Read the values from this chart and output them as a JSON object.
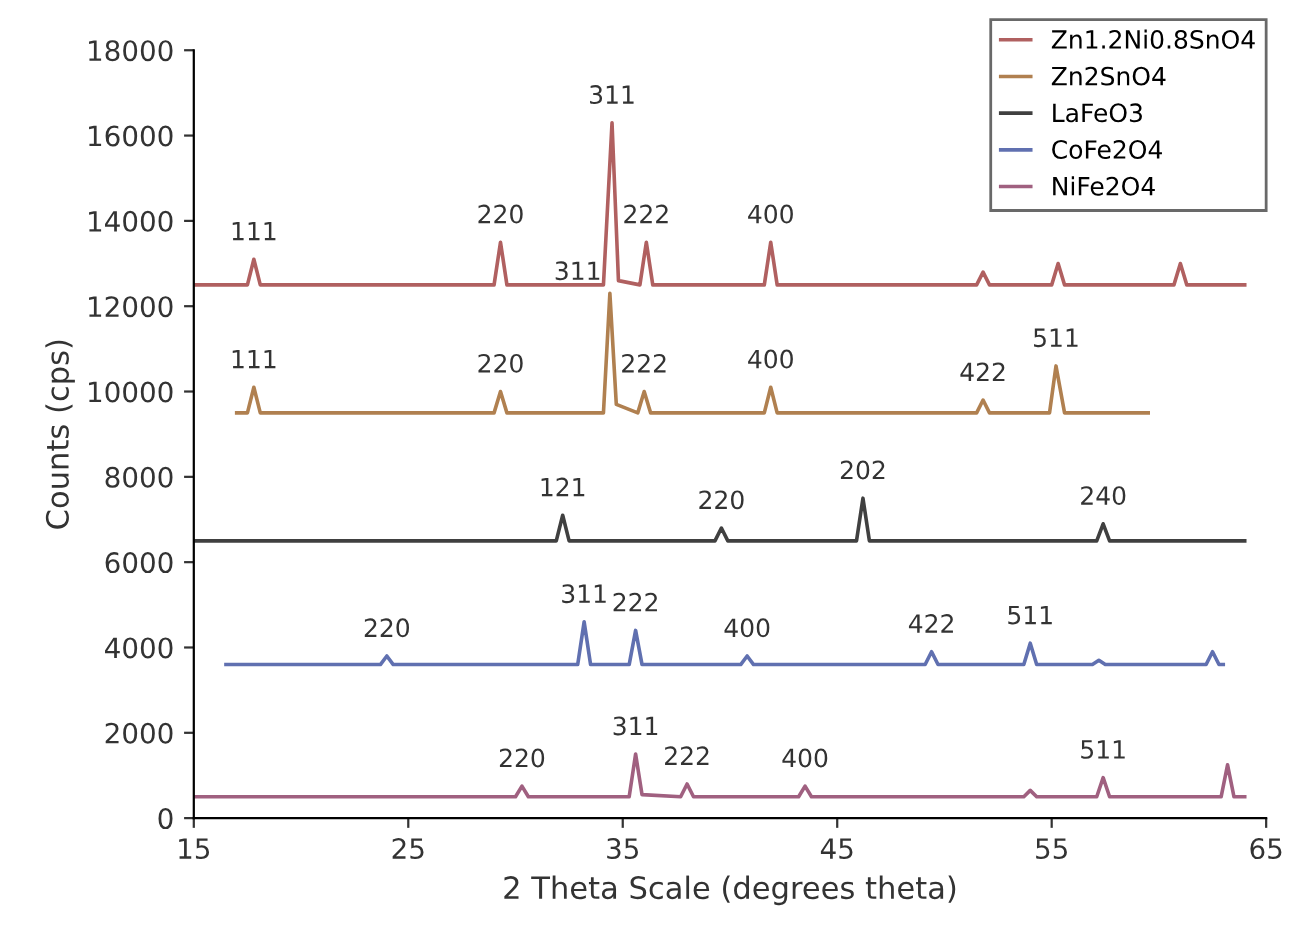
{
  "chart_data": {
    "type": "line",
    "xlabel": "2 Theta Scale (degrees theta)",
    "ylabel": "Counts (cps)",
    "xlim": [
      15,
      65
    ],
    "xticks": [
      15,
      25,
      35,
      45,
      55,
      65
    ],
    "ylim": [
      0,
      18000
    ],
    "yticks": [
      0,
      2000,
      4000,
      6000,
      8000,
      10000,
      12000,
      14000,
      16000,
      18000
    ],
    "legend": "top right",
    "grid": false,
    "marker": "none",
    "line_style": "solid",
    "series": [
      {
        "name": "Zn1.2Ni0.8SnO4",
        "color": "#b06060",
        "x": [
          15,
          17.5,
          17.8,
          18.1,
          29.0,
          29.3,
          29.6,
          34.1,
          34.5,
          34.8,
          35.8,
          36.1,
          36.4,
          41.6,
          41.9,
          42.2,
          51.5,
          51.8,
          52.1,
          55.0,
          55.3,
          55.6,
          60.7,
          61.0,
          61.3,
          64
        ],
        "values": [
          12500,
          12500,
          13100,
          12500,
          12500,
          13500,
          12500,
          12500,
          16300,
          12600,
          12500,
          13500,
          12500,
          12500,
          13500,
          12500,
          12500,
          12800,
          12500,
          12500,
          13000,
          12500,
          12500,
          13000,
          12500,
          12500
        ]
      },
      {
        "name": "Zn2SnO4",
        "color": "#b08050",
        "x": [
          17,
          17.5,
          17.8,
          18.1,
          29.0,
          29.3,
          29.6,
          34.1,
          34.4,
          34.7,
          35.7,
          36.0,
          36.3,
          41.6,
          41.9,
          42.2,
          51.5,
          51.8,
          52.1,
          54.9,
          55.2,
          55.6,
          59.5
        ],
        "values": [
          9500,
          9500,
          10100,
          9500,
          9500,
          10000,
          9500,
          9500,
          12300,
          9700,
          9500,
          10000,
          9500,
          9500,
          10100,
          9500,
          9500,
          9800,
          9500,
          9500,
          10600,
          9500,
          9500
        ]
      },
      {
        "name": "LaFeO3",
        "color": "#404040",
        "x": [
          15,
          31.9,
          32.2,
          32.5,
          39.3,
          39.6,
          39.9,
          45.9,
          46.2,
          46.5,
          57.1,
          57.4,
          57.7,
          64
        ],
        "values": [
          6500,
          6500,
          7100,
          6500,
          6500,
          6800,
          6500,
          6500,
          7500,
          6500,
          6500,
          6900,
          6500,
          6500
        ]
      },
      {
        "name": "CoFe2O4",
        "color": "#6070b0",
        "x": [
          16.5,
          23.7,
          24.0,
          24.3,
          32.9,
          33.2,
          33.5,
          35.3,
          35.6,
          35.9,
          40.5,
          40.8,
          41.1,
          49.1,
          49.4,
          49.7,
          53.7,
          54.0,
          54.3,
          56.9,
          57.2,
          57.5,
          62.2,
          62.5,
          62.8,
          63
        ],
        "values": [
          3600,
          3600,
          3800,
          3600,
          3600,
          4600,
          3600,
          3600,
          4400,
          3600,
          3600,
          3800,
          3600,
          3600,
          3900,
          3600,
          3600,
          4100,
          3600,
          3600,
          3700,
          3600,
          3600,
          3900,
          3600,
          3600
        ]
      },
      {
        "name": "NiFe2O4",
        "color": "#a06080",
        "x": [
          15,
          30.0,
          30.3,
          30.6,
          35.3,
          35.6,
          35.9,
          37.7,
          38.0,
          38.3,
          43.2,
          43.5,
          43.8,
          53.7,
          54.0,
          54.3,
          57.1,
          57.4,
          57.7,
          62.9,
          63.2,
          63.5,
          64
        ],
        "values": [
          500,
          500,
          750,
          500,
          500,
          1500,
          550,
          500,
          800,
          500,
          500,
          750,
          500,
          500,
          650,
          500,
          500,
          950,
          500,
          500,
          1250,
          500,
          500
        ]
      }
    ],
    "annotations": [
      {
        "text": "111",
        "x": 17.8,
        "y": 13100
      },
      {
        "text": "220",
        "x": 29.3,
        "y": 13500
      },
      {
        "text": "311",
        "x": 34.5,
        "y": 16300
      },
      {
        "text": "222",
        "x": 36.1,
        "y": 13500
      },
      {
        "text": "400",
        "x": 41.9,
        "y": 13500
      },
      {
        "text": "111",
        "x": 17.8,
        "y": 10100
      },
      {
        "text": "220",
        "x": 29.3,
        "y": 10000
      },
      {
        "text": "311",
        "x": 34.4,
        "y": 12300
      },
      {
        "text": "222",
        "x": 36.0,
        "y": 10000
      },
      {
        "text": "400",
        "x": 41.9,
        "y": 10100
      },
      {
        "text": "422",
        "x": 51.8,
        "y": 9800
      },
      {
        "text": "511",
        "x": 55.2,
        "y": 10600
      },
      {
        "text": "121",
        "x": 32.2,
        "y": 7100
      },
      {
        "text": "220",
        "x": 39.6,
        "y": 6800
      },
      {
        "text": "202",
        "x": 46.2,
        "y": 7500
      },
      {
        "text": "240",
        "x": 57.4,
        "y": 6900
      },
      {
        "text": "220",
        "x": 24.0,
        "y": 3800
      },
      {
        "text": "311",
        "x": 33.2,
        "y": 4600
      },
      {
        "text": "222",
        "x": 35.6,
        "y": 4400
      },
      {
        "text": "400",
        "x": 40.8,
        "y": 3800
      },
      {
        "text": "422",
        "x": 49.4,
        "y": 3900
      },
      {
        "text": "511",
        "x": 54.0,
        "y": 4100
      },
      {
        "text": "220",
        "x": 30.3,
        "y": 750
      },
      {
        "text": "311",
        "x": 35.6,
        "y": 1500
      },
      {
        "text": "222",
        "x": 38.0,
        "y": 800
      },
      {
        "text": "400",
        "x": 43.5,
        "y": 750
      },
      {
        "text": "511",
        "x": 57.4,
        "y": 950
      }
    ]
  }
}
